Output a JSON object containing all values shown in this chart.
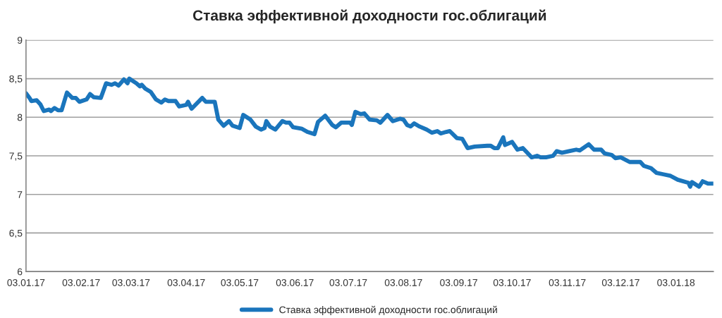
{
  "chart_data": {
    "type": "line",
    "title": "Ставка эффективной доходности гос.облигаций",
    "x": [
      "2017-01-03",
      "2017-01-05",
      "2017-01-06",
      "2017-01-09",
      "2017-01-11",
      "2017-01-13",
      "2017-01-16",
      "2017-01-17",
      "2017-01-19",
      "2017-01-21",
      "2017-01-23",
      "2017-01-26",
      "2017-01-29",
      "2017-01-31",
      "2017-02-02",
      "2017-02-06",
      "2017-02-08",
      "2017-02-10",
      "2017-02-14",
      "2017-02-17",
      "2017-02-20",
      "2017-02-22",
      "2017-02-24",
      "2017-02-27",
      "2017-03-01",
      "2017-03-02",
      "2017-03-06",
      "2017-03-08",
      "2017-03-09",
      "2017-03-11",
      "2017-03-14",
      "2017-03-17",
      "2017-03-20",
      "2017-03-22",
      "2017-03-24",
      "2017-03-28",
      "2017-03-30",
      "2017-04-03",
      "2017-04-04",
      "2017-04-06",
      "2017-04-09",
      "2017-04-12",
      "2017-04-14",
      "2017-04-19",
      "2017-04-21",
      "2017-04-24",
      "2017-04-27",
      "2017-04-29",
      "2017-05-03",
      "2017-05-05",
      "2017-05-09",
      "2017-05-12",
      "2017-05-15",
      "2017-05-17",
      "2017-05-18",
      "2017-05-20",
      "2017-05-23",
      "2017-05-27",
      "2017-05-29",
      "2017-05-31",
      "2017-06-02",
      "2017-06-07",
      "2017-06-10",
      "2017-06-14",
      "2017-06-16",
      "2017-06-20",
      "2017-06-24",
      "2017-06-26",
      "2017-06-29",
      "2017-07-04",
      "2017-07-05",
      "2017-07-07",
      "2017-07-10",
      "2017-07-12",
      "2017-07-15",
      "2017-07-19",
      "2017-07-21",
      "2017-07-25",
      "2017-07-28",
      "2017-08-01",
      "2017-08-03",
      "2017-08-05",
      "2017-08-07",
      "2017-08-09",
      "2017-08-12",
      "2017-08-16",
      "2017-08-19",
      "2017-08-22",
      "2017-08-24",
      "2017-08-27",
      "2017-08-29",
      "2017-09-02",
      "2017-09-05",
      "2017-09-08",
      "2017-09-12",
      "2017-09-19",
      "2017-09-21",
      "2017-09-23",
      "2017-09-25",
      "2017-09-28",
      "2017-09-29",
      "2017-10-03",
      "2017-10-06",
      "2017-10-09",
      "2017-10-14",
      "2017-10-17",
      "2017-10-19",
      "2017-10-22",
      "2017-10-26",
      "2017-10-28",
      "2017-10-31",
      "2017-11-04",
      "2017-11-08",
      "2017-11-10",
      "2017-11-15",
      "2017-11-18",
      "2017-11-22",
      "2017-11-24",
      "2017-11-28",
      "2017-11-30",
      "2017-12-03",
      "2017-12-08",
      "2017-12-14",
      "2017-12-16",
      "2017-12-20",
      "2017-12-23",
      "2017-12-27",
      "2017-12-31",
      "2018-01-04",
      "2018-01-10",
      "2018-01-11",
      "2018-01-12",
      "2018-01-16",
      "2018-01-18",
      "2018-01-21",
      "2018-01-24"
    ],
    "series": [
      {
        "name": "Ставка эффективной доходности гос.облигаций",
        "color": "#1a75bc",
        "values": [
          8.31,
          8.25,
          8.21,
          8.22,
          8.17,
          8.08,
          8.1,
          8.08,
          8.12,
          8.09,
          8.09,
          8.32,
          8.25,
          8.25,
          8.2,
          8.23,
          8.3,
          8.26,
          8.25,
          8.44,
          8.42,
          8.44,
          8.41,
          8.49,
          8.44,
          8.5,
          8.44,
          8.4,
          8.42,
          8.37,
          8.33,
          8.23,
          8.19,
          8.23,
          8.21,
          8.21,
          8.14,
          8.16,
          8.2,
          8.11,
          8.18,
          8.25,
          8.2,
          8.2,
          7.97,
          7.89,
          7.95,
          7.89,
          7.86,
          8.03,
          7.97,
          7.88,
          7.84,
          7.86,
          7.95,
          7.88,
          7.84,
          7.95,
          7.93,
          7.93,
          7.87,
          7.85,
          7.81,
          7.78,
          7.94,
          8.02,
          7.9,
          7.87,
          7.93,
          7.93,
          7.9,
          8.07,
          8.04,
          8.05,
          7.97,
          7.96,
          7.93,
          8.03,
          7.95,
          7.98,
          7.97,
          7.9,
          7.88,
          7.92,
          7.88,
          7.84,
          7.8,
          7.82,
          7.79,
          7.81,
          7.82,
          7.73,
          7.72,
          7.6,
          7.62,
          7.63,
          7.63,
          7.6,
          7.6,
          7.74,
          7.64,
          7.68,
          7.58,
          7.6,
          7.48,
          7.5,
          7.48,
          7.48,
          7.5,
          7.56,
          7.54,
          7.56,
          7.58,
          7.57,
          7.65,
          7.58,
          7.58,
          7.53,
          7.51,
          7.47,
          7.48,
          7.42,
          7.42,
          7.37,
          7.34,
          7.28,
          7.26,
          7.24,
          7.19,
          7.15,
          7.1,
          7.16,
          7.1,
          7.17,
          7.14,
          7.14
        ]
      }
    ],
    "xlim": [
      "2017-01-03",
      "2018-01-24"
    ],
    "xticks": [
      {
        "value": "2017-01-03",
        "label": "03.01.17"
      },
      {
        "value": "2017-02-03",
        "label": "03.02.17"
      },
      {
        "value": "2017-03-03",
        "label": "03.03.17"
      },
      {
        "value": "2017-04-03",
        "label": "03.04.17"
      },
      {
        "value": "2017-05-03",
        "label": "03.05.17"
      },
      {
        "value": "2017-06-03",
        "label": "03.06.17"
      },
      {
        "value": "2017-07-03",
        "label": "03.07.17"
      },
      {
        "value": "2017-08-03",
        "label": "03.08.17"
      },
      {
        "value": "2017-09-03",
        "label": "03.09.17"
      },
      {
        "value": "2017-10-03",
        "label": "03.10.17"
      },
      {
        "value": "2017-11-03",
        "label": "03.11.17"
      },
      {
        "value": "2017-12-03",
        "label": "03.12.17"
      },
      {
        "value": "2018-01-03",
        "label": "03.01.18"
      }
    ],
    "ylim": [
      6,
      9
    ],
    "yticks": [
      6,
      {
        "value": 6.5,
        "label": "6,5"
      },
      7,
      {
        "value": 7.5,
        "label": "7,5"
      },
      8,
      {
        "value": 8.5,
        "label": "8,5"
      },
      9
    ],
    "grid": "y",
    "legend": "bottom",
    "line_style": "solid",
    "marker": "none"
  }
}
